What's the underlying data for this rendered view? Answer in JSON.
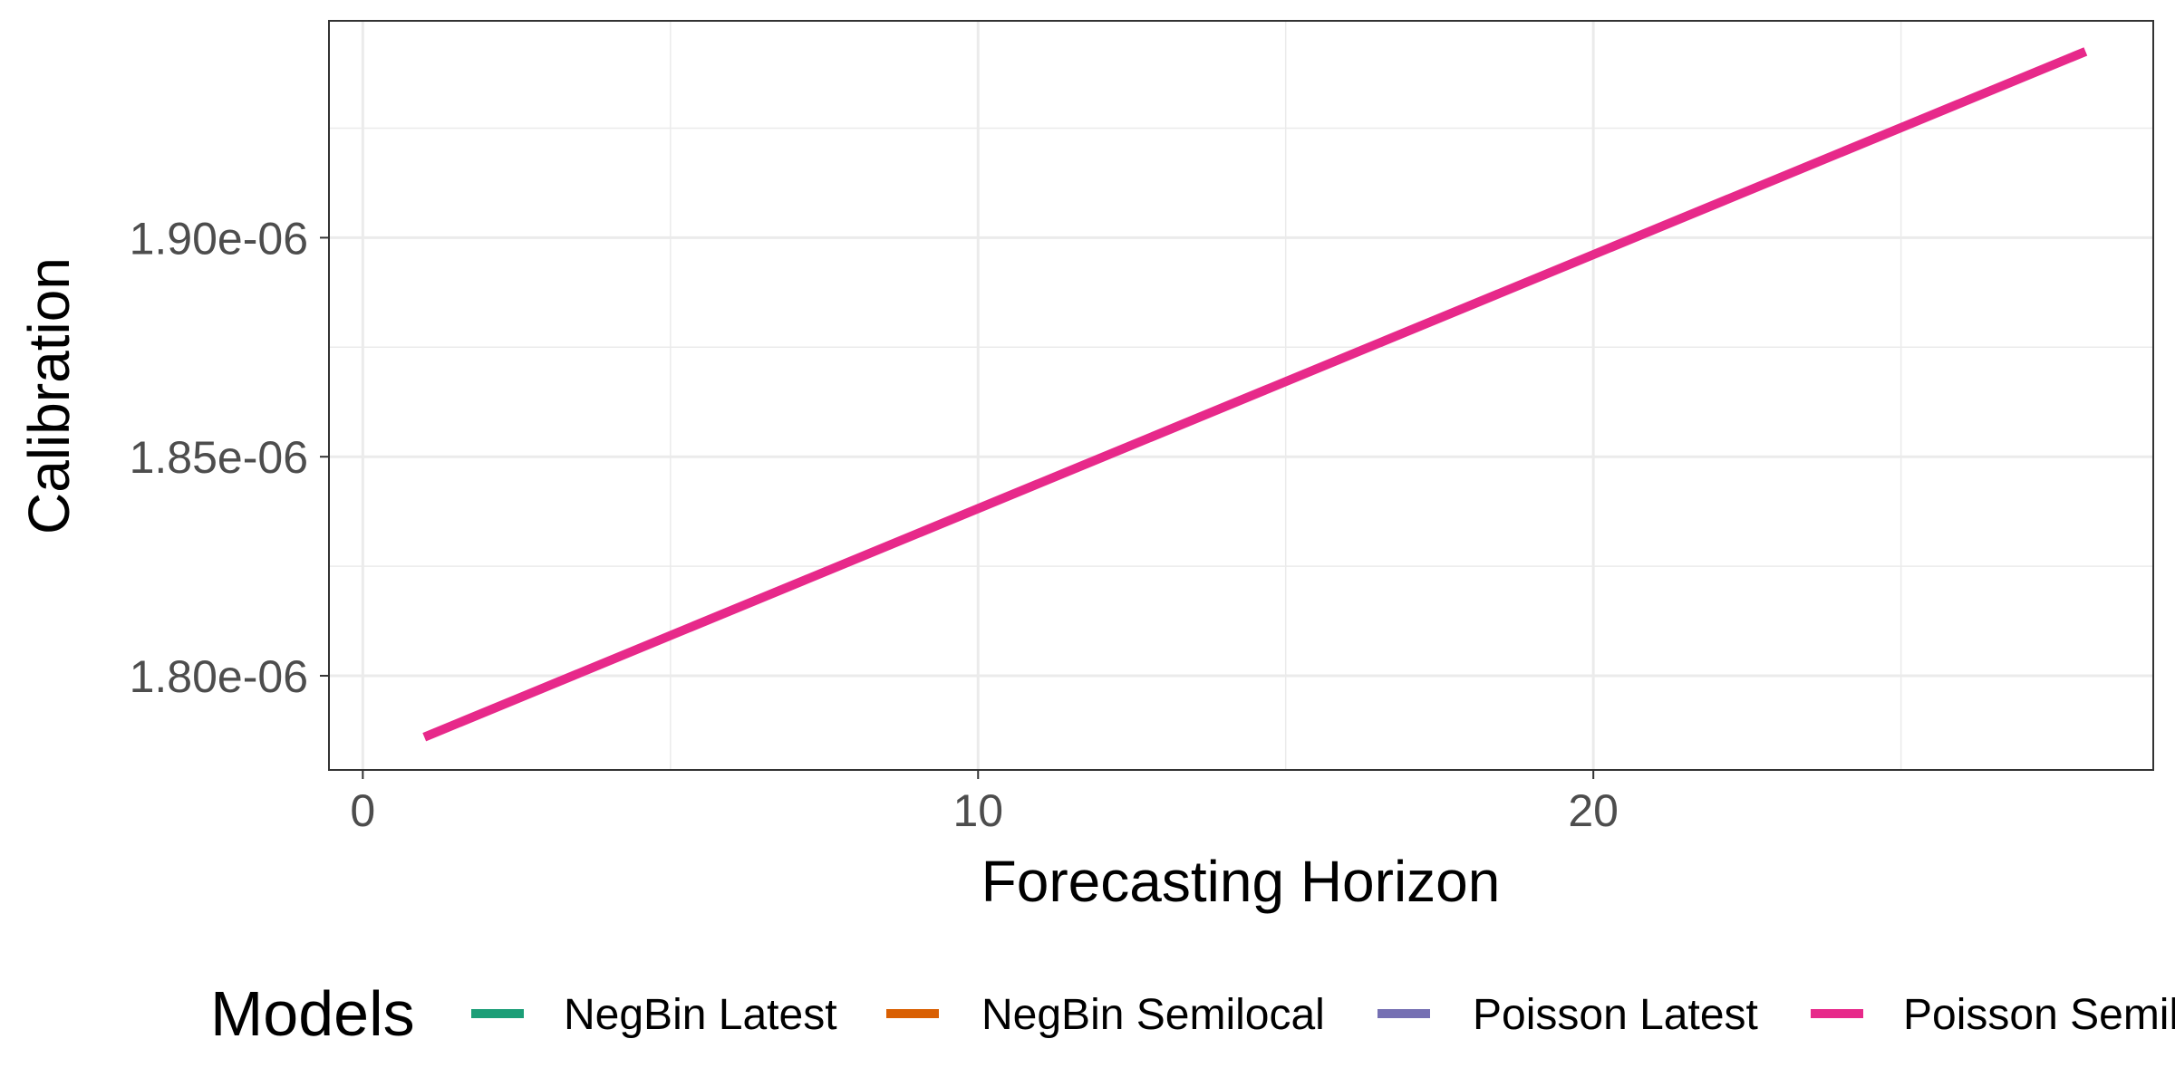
{
  "chart_data": {
    "type": "line",
    "title": "",
    "xlabel": "Forecasting Horizon",
    "ylabel": "Calibration",
    "xlim": [
      -0.55,
      29.1
    ],
    "ylim": [
      1.7785e-06,
      1.9495e-06
    ],
    "x_ticks": [
      0,
      10,
      20
    ],
    "x_tick_labels": [
      "0",
      "10",
      "20"
    ],
    "y_ticks": [
      1.8e-06,
      1.85e-06,
      1.9e-06
    ],
    "y_tick_labels": [
      "1.80e-06",
      "1.85e-06",
      "1.90e-06"
    ],
    "grid": true,
    "legend": {
      "title": "Models",
      "position": "bottom",
      "entries": [
        {
          "name": "NegBin Latest",
          "color": "#1B9E77"
        },
        {
          "name": "NegBin Semilocal",
          "color": "#D95F02"
        },
        {
          "name": "Poisson Latest",
          "color": "#7570B3"
        },
        {
          "name": "Poisson Semilocal",
          "color": "#E7298A"
        }
      ]
    },
    "series": [
      {
        "name": "Poisson Semilocal",
        "color": "#E7298A",
        "x": [
          1,
          28
        ],
        "y": [
          1.786e-06,
          1.9425e-06
        ]
      }
    ]
  }
}
